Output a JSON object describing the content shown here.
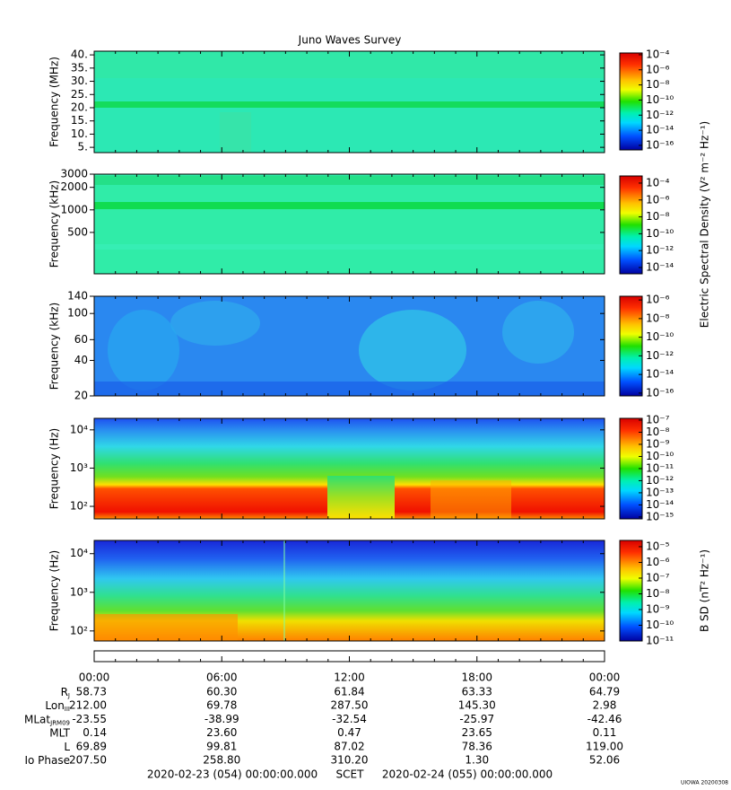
{
  "title": "Juno Waves Survey",
  "e_field_zlabel": "Electric Spectral Density (V² m⁻² Hz⁻¹)",
  "chart_data": [
    {
      "type": "spectrogram",
      "ylabel": "Frequency (MHz)",
      "yscale": "linear",
      "ylim": [
        3,
        41.4
      ],
      "yticks": [
        {
          "value": 5,
          "label": "5."
        },
        {
          "value": 10,
          "label": "10."
        },
        {
          "value": 15,
          "label": "15."
        },
        {
          "value": 20,
          "label": "20."
        },
        {
          "value": 25,
          "label": "25."
        },
        {
          "value": 30,
          "label": "30."
        },
        {
          "value": 35,
          "label": "35."
        },
        {
          "value": 40,
          "label": "40."
        }
      ],
      "zscale": "log",
      "zlim": [
        2.5e-17,
        0.00017
      ],
      "zticks": [
        {
          "value": 0.0001,
          "label": "10⁻⁴"
        },
        {
          "value": 1e-06,
          "label": "10⁻⁶"
        },
        {
          "value": 1e-08,
          "label": "10⁻⁸"
        },
        {
          "value": 1e-10,
          "label": "10⁻¹⁰"
        },
        {
          "value": 1e-12,
          "label": "10⁻¹²"
        },
        {
          "value": 1e-14,
          "label": "10⁻¹⁴"
        },
        {
          "value": 1e-16,
          "label": "10⁻¹⁶"
        }
      ]
    },
    {
      "type": "spectrogram",
      "ylabel": "Frequency (kHz)",
      "yscale": "log",
      "ylim": [
        140,
        3000
      ],
      "yticks": [
        500,
        1000,
        2000,
        3000
      ],
      "zscale": "log",
      "zlim": [
        1.8e-15,
        0.0007
      ],
      "zticks": [
        {
          "value": 0.0001,
          "label": "10⁻⁴"
        },
        {
          "value": 1e-06,
          "label": "10⁻⁶"
        },
        {
          "value": 1e-08,
          "label": "10⁻⁸"
        },
        {
          "value": 1e-10,
          "label": "10⁻¹⁰"
        },
        {
          "value": 1e-12,
          "label": "10⁻¹²"
        },
        {
          "value": 1e-14,
          "label": "10⁻¹⁴"
        }
      ]
    },
    {
      "type": "spectrogram",
      "ylabel": "Frequency (kHz)",
      "yscale": "log",
      "ylim": [
        20,
        140
      ],
      "yticks": [
        20,
        40,
        60,
        100,
        140
      ],
      "zscale": "log",
      "zlim": [
        5e-17,
        2.5e-06
      ],
      "zticks": [
        {
          "value": 1e-06,
          "label": "10⁻⁶"
        },
        {
          "value": 1e-08,
          "label": "10⁻⁸"
        },
        {
          "value": 1e-10,
          "label": "10⁻¹⁰"
        },
        {
          "value": 1e-12,
          "label": "10⁻¹²"
        },
        {
          "value": 1e-14,
          "label": "10⁻¹⁴"
        },
        {
          "value": 1e-16,
          "label": "10⁻¹⁶"
        }
      ]
    },
    {
      "type": "spectrogram",
      "ylabel": "Frequency (Hz)",
      "yscale": "log",
      "ylim": [
        47,
        20000
      ],
      "yticks": [
        {
          "value": 100,
          "label": "10²"
        },
        {
          "value": 1000,
          "label": "10³"
        },
        {
          "value": 10000,
          "label": "10⁴"
        }
      ],
      "zscale": "log",
      "zlim": [
        7e-16,
        1.4e-07
      ],
      "zticks": [
        {
          "value": 1e-07,
          "label": "10⁻⁷"
        },
        {
          "value": 1e-08,
          "label": "10⁻⁸"
        },
        {
          "value": 1e-09,
          "label": "10⁻⁹"
        },
        {
          "value": 1e-10,
          "label": "10⁻¹⁰"
        },
        {
          "value": 1e-11,
          "label": "10⁻¹¹"
        },
        {
          "value": 1e-12,
          "label": "10⁻¹²"
        },
        {
          "value": 1e-13,
          "label": "10⁻¹³"
        },
        {
          "value": 1e-14,
          "label": "10⁻¹⁴"
        },
        {
          "value": 1e-15,
          "label": "10⁻¹⁵"
        }
      ]
    },
    {
      "type": "spectrogram",
      "ylabel": "Frequency (Hz)",
      "yscale": "log",
      "ylim": [
        55,
        22000
      ],
      "yticks": [
        {
          "value": 100,
          "label": "10²"
        },
        {
          "value": 1000,
          "label": "10³"
        },
        {
          "value": 10000,
          "label": "10⁴"
        }
      ],
      "zscale": "log",
      "zlim": [
        1e-11,
        2.5e-05
      ],
      "zlabel": "B SD (nT² Hz⁻¹)",
      "zticks": [
        {
          "value": 1e-05,
          "label": "10⁻⁵"
        },
        {
          "value": 1e-06,
          "label": "10⁻⁶"
        },
        {
          "value": 1e-07,
          "label": "10⁻⁷"
        },
        {
          "value": 1e-08,
          "label": "10⁻⁸"
        },
        {
          "value": 1e-09,
          "label": "10⁻⁹"
        },
        {
          "value": 1e-10,
          "label": "10⁻¹⁰"
        },
        {
          "value": 1e-11,
          "label": "10⁻¹¹"
        }
      ]
    }
  ],
  "time_axis": {
    "ticks": [
      "00:00",
      "06:00",
      "12:00",
      "18:00",
      "00:00"
    ]
  },
  "ephemeris": [
    {
      "label": "R",
      "sub": "J",
      "values": [
        "58.73",
        "60.30",
        "61.84",
        "63.33",
        "64.79"
      ]
    },
    {
      "label": "Lon",
      "sub": "III",
      "values": [
        "212.00",
        "69.78",
        "287.50",
        "145.30",
        "2.98"
      ]
    },
    {
      "label": "MLat",
      "sub": "JRM09",
      "values": [
        "-23.55",
        "-38.99",
        "-32.54",
        "-25.97",
        "-42.46"
      ]
    },
    {
      "label": "MLT",
      "values": [
        "0.14",
        "23.60",
        "0.47",
        "23.65",
        "0.11"
      ]
    },
    {
      "label": "L",
      "values": [
        "69.89",
        "99.81",
        "87.02",
        "78.36",
        "119.00"
      ]
    },
    {
      "label": "Io Phase",
      "values": [
        "207.50",
        "258.80",
        "310.20",
        "1.30",
        "52.06"
      ]
    }
  ],
  "start": "2020-02-23 (054) 00:00:00.000",
  "time_system": "SCET",
  "end": "2020-02-24 (055) 00:00:00.000",
  "footer": "UIOWA 20200308"
}
